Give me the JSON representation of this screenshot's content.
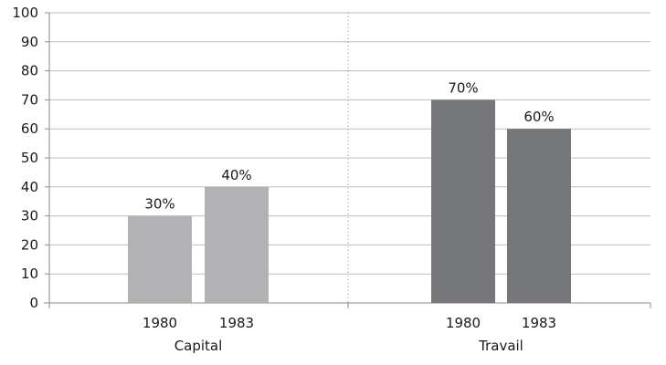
{
  "chart_data": {
    "type": "bar",
    "ylim": [
      0,
      100
    ],
    "yticks": [
      0,
      10,
      20,
      30,
      40,
      50,
      60,
      70,
      80,
      90,
      100
    ],
    "grid": true,
    "groups": [
      {
        "name": "Capital",
        "color": "#b2b2b4",
        "bars": [
          {
            "category": "1980",
            "value": 30,
            "label": "30%"
          },
          {
            "category": "1983",
            "value": 40,
            "label": "40%"
          }
        ]
      },
      {
        "name": "Travail",
        "color": "#76777b",
        "bars": [
          {
            "category": "1980",
            "value": 70,
            "label": "70%"
          },
          {
            "category": "1983",
            "value": 60,
            "label": "60%"
          }
        ]
      }
    ]
  }
}
